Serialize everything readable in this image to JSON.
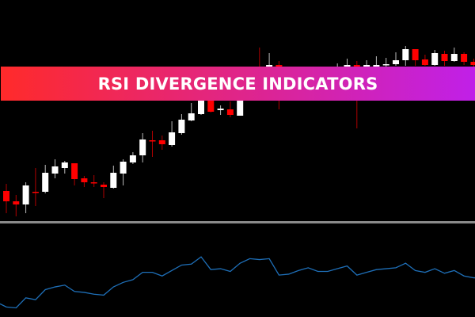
{
  "banner": {
    "title": "RSI DIVERGENCE INDICATORS",
    "gradient_start": "#ff2a2a",
    "gradient_end": "#c020e8"
  },
  "chart_data": [
    {
      "type": "candlestick",
      "title": "",
      "colors": {
        "bullish": "#ffffff",
        "bearish": "#ff0000",
        "background": "#000000"
      },
      "grid": false,
      "note_units": "relative price, no axis printed",
      "ohlc": [
        [
          59,
          68,
          31,
          46
        ],
        [
          46,
          54,
          27,
          42
        ],
        [
          42,
          70,
          31,
          66
        ],
        [
          58,
          88,
          40,
          57
        ],
        [
          58,
          92,
          56,
          82
        ],
        [
          81,
          99,
          75,
          90
        ],
        [
          88,
          97,
          81,
          95
        ],
        [
          94,
          94,
          66,
          74
        ],
        [
          75,
          78,
          64,
          70
        ],
        [
          70,
          79,
          64,
          69
        ],
        [
          67,
          70,
          50,
          64
        ],
        [
          63,
          91,
          62,
          82
        ],
        [
          81,
          99,
          66,
          96
        ],
        [
          95,
          108,
          93,
          104
        ],
        [
          104,
          132,
          95,
          124
        ],
        [
          123,
          135,
          102,
          122
        ],
        [
          123,
          129,
          111,
          118
        ],
        [
          117,
          147,
          115,
          133
        ],
        [
          132,
          156,
          130,
          149
        ],
        [
          148,
          170,
          147,
          157
        ],
        [
          156,
          190,
          155,
          180
        ],
        [
          182,
          188,
          158,
          159
        ],
        [
          161,
          167,
          155,
          163
        ],
        [
          162,
          172,
          152,
          155
        ],
        [
          154,
          185,
          154,
          180
        ],
        [
          200,
          205,
          188,
          190
        ],
        [
          216,
          240,
          200,
          214
        ],
        [
          216,
          233,
          210,
          218
        ],
        [
          218,
          223,
          162,
          216
        ],
        [
          200,
          210,
          195,
          205
        ],
        [
          205,
          210,
          195,
          200
        ],
        [
          200,
          210,
          195,
          205
        ],
        [
          205,
          210,
          195,
          200
        ],
        [
          205,
          215,
          200,
          210
        ],
        [
          210,
          220,
          205,
          214
        ],
        [
          216,
          226,
          210,
          218
        ],
        [
          218,
          223,
          138,
          214
        ],
        [
          216,
          224,
          210,
          218
        ],
        [
          216,
          229,
          210,
          218
        ],
        [
          218,
          227,
          216,
          219
        ],
        [
          219,
          234,
          217,
          224
        ],
        [
          224,
          242,
          217,
          238
        ],
        [
          238,
          238,
          217,
          224
        ],
        [
          225,
          231,
          217,
          218
        ],
        [
          218,
          237,
          217,
          233
        ],
        [
          232,
          236,
          217,
          223
        ],
        [
          223,
          240,
          222,
          232
        ],
        [
          232,
          234,
          218,
          222
        ],
        [
          222,
          226,
          214,
          218
        ]
      ]
    },
    {
      "type": "line",
      "title": "",
      "ylim": [
        0,
        100
      ],
      "color": "#1e6fb8",
      "grid": false,
      "values": [
        11,
        10,
        21,
        19,
        30,
        33,
        35,
        28,
        27,
        25,
        24,
        33,
        38,
        41,
        49,
        49,
        45,
        51,
        57,
        58,
        66,
        52,
        53,
        50,
        59,
        64,
        63,
        64,
        46,
        47,
        51,
        54,
        50,
        50,
        53,
        56,
        46,
        49,
        52,
        53,
        54,
        59,
        51,
        49,
        53,
        48,
        51,
        45,
        43
      ]
    }
  ],
  "separator_color": "#8a8a8a"
}
